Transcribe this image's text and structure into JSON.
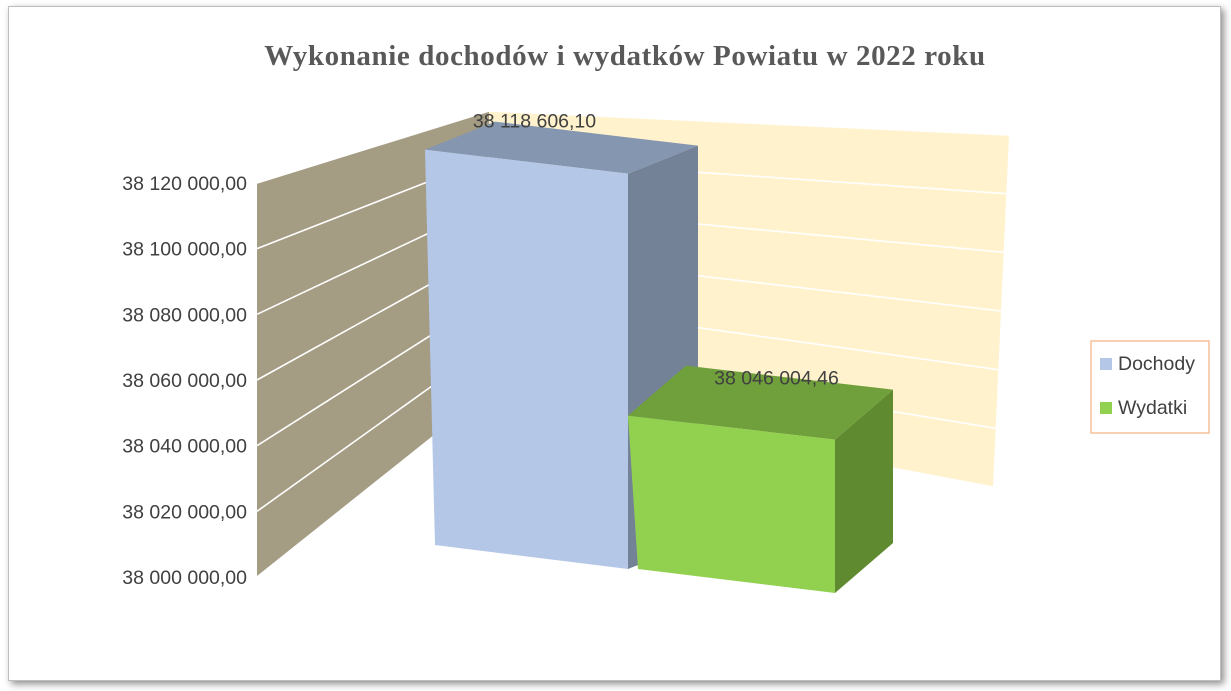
{
  "chart_data": {
    "type": "bar",
    "title": "Wykonanie dochodów i wydatków Powiatu w 2022 roku",
    "categories": [
      ""
    ],
    "series": [
      {
        "name": "Dochody",
        "values": [
          38118606.1
        ],
        "label": "38 118 606,10",
        "color": "#b4c7e7",
        "side_color": "#738296",
        "top_color": "#8596b0"
      },
      {
        "name": "Wydatki",
        "values": [
          38046004.46
        ],
        "label": "38 046 004,46",
        "color": "#92d050",
        "side_color": "#5f8a2f",
        "top_color": "#70a03c"
      }
    ],
    "ylim": [
      38000000,
      38120000
    ],
    "yticks": [
      {
        "value": 38000000,
        "label": "38 000 000,00"
      },
      {
        "value": 38020000,
        "label": "38 020 000,00"
      },
      {
        "value": 38040000,
        "label": "38 040 000,00"
      },
      {
        "value": 38060000,
        "label": "38 060 000,00"
      },
      {
        "value": 38080000,
        "label": "38 080 000,00"
      },
      {
        "value": 38100000,
        "label": "38 100 000,00"
      },
      {
        "value": 38120000,
        "label": "38 120 000,00"
      }
    ],
    "grid": true,
    "legend_position": "right",
    "colors": {
      "side_wall": "#a59c84",
      "back_wall": "#fff2cc",
      "legend_border": "#f4b183",
      "grid": "#ffffff"
    }
  }
}
